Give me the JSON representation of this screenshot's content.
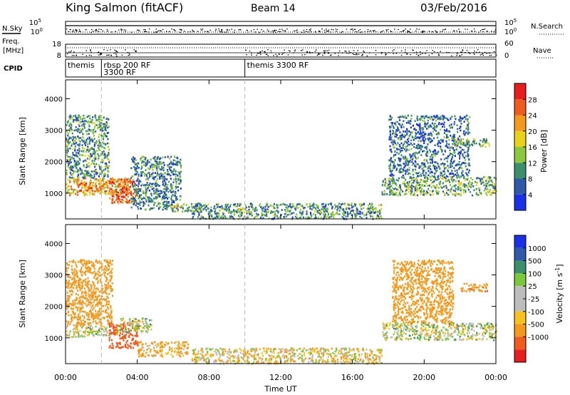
{
  "header": {
    "station": "King Salmon (fitACF)",
    "beam": "Beam 14",
    "date": "03/Feb/2016"
  },
  "panel_labels": {
    "nsky": "N.Sky",
    "nsearch": "N.Search",
    "freq_line1": "Freq.",
    "freq_line2": "[MHz]",
    "nave": "Nave",
    "cpid": "CPID"
  },
  "strip_ticks": {
    "nsky_top": "10^5",
    "nsky_bottom": "10^0",
    "nsearch_top": "10^5",
    "nsearch_bottom": "10^0",
    "freq_top": "18",
    "freq_bottom": "8",
    "nave_top": "60",
    "nave_bottom": "0"
  },
  "cpid_segments": [
    {
      "start_hour": 0.0,
      "end_hour": 2.0,
      "labels": [
        "themis"
      ]
    },
    {
      "start_hour": 2.0,
      "end_hour": 10.0,
      "labels": [
        "rbsp 200 RF",
        "3300 RF"
      ]
    },
    {
      "start_hour": 10.0,
      "end_hour": 24.0,
      "labels": [
        "themis 3300 RF"
      ]
    }
  ],
  "colors": {
    "power_scale": [
      "#1a2fe6",
      "#2f5aa8",
      "#3b8f6a",
      "#8dc63f",
      "#e8d21c",
      "#f39a1e",
      "#ef5a1e",
      "#e61e1e"
    ],
    "velocity_scale": [
      "#e61e1e",
      "#f05a1e",
      "#f39a1e",
      "#f5c21e",
      "#bdbdbd",
      "#bdbdbd",
      "#7cc83c",
      "#3b8f6a",
      "#2f5aa8",
      "#1a2fe6"
    ]
  },
  "chart_data": [
    {
      "type": "heatmap",
      "name": "power",
      "xlabel": "Time UT",
      "ylabel": "Slant Range [km]",
      "xlim": [
        0,
        24
      ],
      "ylim": [
        180,
        4600
      ],
      "x_ticks": [
        "00:00",
        "04:00",
        "08:00",
        "12:00",
        "16:00",
        "20:00",
        "00:00"
      ],
      "y_ticks": [
        "1000",
        "2000",
        "3000",
        "4000"
      ],
      "colorbar": {
        "label": "Power [dB]",
        "range": [
          0,
          32
        ],
        "ticks": [
          "4",
          "8",
          "12",
          "16",
          "20",
          "24",
          "28"
        ]
      },
      "regions": [
        {
          "t0": 0.0,
          "t1": 3.6,
          "r0": 950,
          "r1": 1500,
          "value": 20
        },
        {
          "t0": 0.6,
          "t1": 2.2,
          "r0": 1080,
          "r1": 1350,
          "value": 25
        },
        {
          "t0": 2.4,
          "t1": 4.0,
          "r0": 700,
          "r1": 1500,
          "value": 27
        },
        {
          "t0": 0.0,
          "t1": 2.4,
          "r0": 1500,
          "r1": 3500,
          "value": 10
        },
        {
          "t0": 3.6,
          "t1": 6.4,
          "r0": 500,
          "r1": 2200,
          "value": 9
        },
        {
          "t0": 5.8,
          "t1": 7.0,
          "r0": 430,
          "r1": 700,
          "value": 14
        },
        {
          "t0": 7.0,
          "t1": 17.6,
          "r0": 200,
          "r1": 700,
          "value": 10
        },
        {
          "t0": 17.6,
          "t1": 24.0,
          "r0": 950,
          "r1": 1550,
          "value": 12
        },
        {
          "t0": 18.0,
          "t1": 22.5,
          "r0": 1550,
          "r1": 3500,
          "value": 7
        },
        {
          "t0": 21.5,
          "t1": 23.6,
          "r0": 2500,
          "r1": 2750,
          "value": 12
        }
      ]
    },
    {
      "type": "heatmap",
      "name": "velocity",
      "xlabel": "Time UT",
      "ylabel": "Slant Range [km]",
      "xlim": [
        0,
        24
      ],
      "ylim": [
        180,
        4600
      ],
      "x_ticks": [
        "00:00",
        "04:00",
        "08:00",
        "12:00",
        "16:00",
        "20:00",
        "00:00"
      ],
      "y_ticks": [
        "1000",
        "2000",
        "3000",
        "4000"
      ],
      "colorbar": {
        "label": "Velocity [m s^-1]",
        "ticks": [
          "1000",
          "500",
          "100",
          "25",
          "-25",
          "-100",
          "-500",
          "-1000"
        ]
      },
      "regions": [
        {
          "t0": 0.0,
          "t1": 3.0,
          "r0": 1050,
          "r1": 1400,
          "value": 0
        },
        {
          "t0": 0.0,
          "t1": 2.6,
          "r0": 1400,
          "r1": 3500,
          "value": -300
        },
        {
          "t0": 2.4,
          "t1": 4.0,
          "r0": 700,
          "r1": 1500,
          "value": -800
        },
        {
          "t0": 3.0,
          "t1": 4.8,
          "r0": 1200,
          "r1": 1650,
          "value": 0
        },
        {
          "t0": 4.0,
          "t1": 6.8,
          "r0": 430,
          "r1": 900,
          "value": -150
        },
        {
          "t0": 7.0,
          "t1": 17.6,
          "r0": 200,
          "r1": 700,
          "value": -60
        },
        {
          "t0": 17.6,
          "t1": 24.0,
          "r0": 950,
          "r1": 1500,
          "value": 0
        },
        {
          "t0": 18.2,
          "t1": 21.6,
          "r0": 1500,
          "r1": 3500,
          "value": -300
        },
        {
          "t0": 22.0,
          "t1": 23.6,
          "r0": 2500,
          "r1": 2750,
          "value": -400
        }
      ]
    }
  ]
}
